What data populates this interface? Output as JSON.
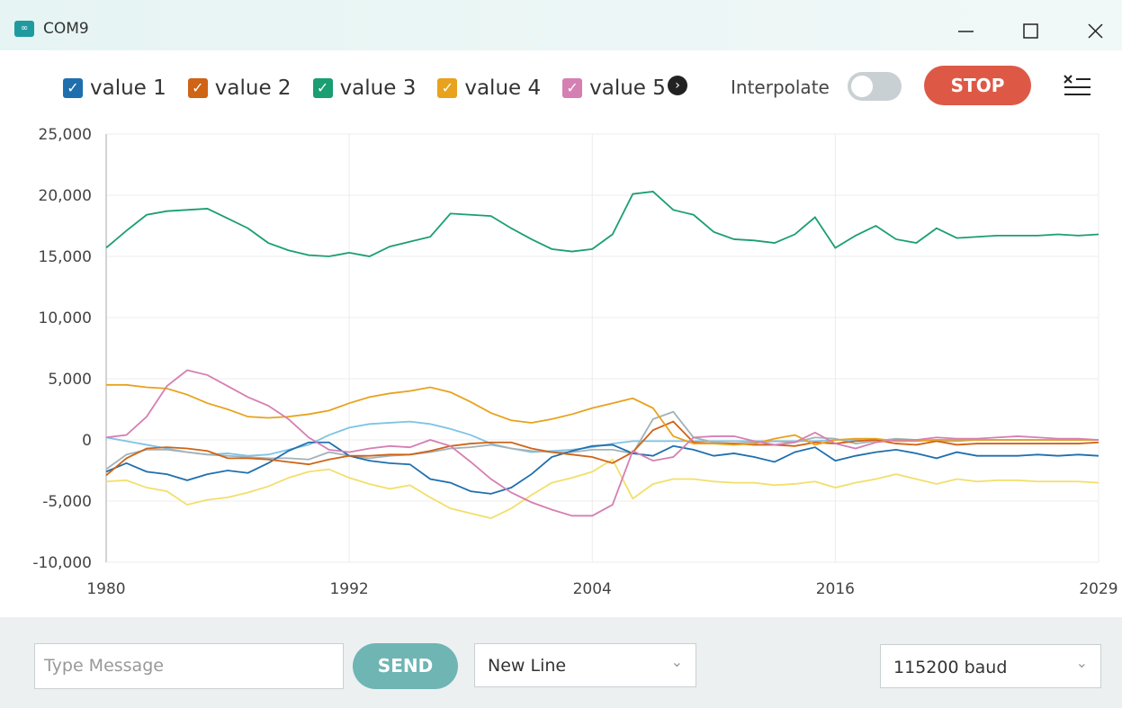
{
  "window": {
    "title": "COM9"
  },
  "controls": {
    "interpolate": "Interpolate",
    "stop": "STOP"
  },
  "footer": {
    "message_placeholder": "Type Message",
    "send": "SEND",
    "line_ending": "New Line",
    "baud": "115200 baud"
  },
  "chart_data": {
    "type": "line",
    "x": [
      1980,
      1981,
      1982,
      1983,
      1984,
      1985,
      1986,
      1987,
      1988,
      1989,
      1990,
      1991,
      1992,
      1993,
      1994,
      1995,
      1996,
      1997,
      1998,
      1999,
      2000,
      2001,
      2002,
      2003,
      2004,
      2005,
      2006,
      2007,
      2008,
      2009,
      2010,
      2011,
      2012,
      2013,
      2014,
      2015,
      2016,
      2017,
      2018,
      2019,
      2020,
      2021,
      2022,
      2023,
      2024,
      2025,
      2026,
      2027,
      2028,
      2029
    ],
    "xlim": [
      1980,
      2029
    ],
    "xticks": [
      1980,
      1992,
      2004,
      2016,
      2029
    ],
    "ylim": [
      -10000,
      25000
    ],
    "yticks": [
      {
        "value": -10000,
        "label": "-10,000"
      },
      {
        "value": -5000,
        "label": "-5,000"
      },
      0,
      {
        "value": 5000,
        "label": "5,000"
      },
      {
        "value": 10000,
        "label": "10,000"
      },
      {
        "value": 15000,
        "label": "15,000"
      },
      {
        "value": 20000,
        "label": "20,000"
      },
      {
        "value": 25000,
        "label": "25,000"
      }
    ],
    "grid": true,
    "series": [
      {
        "name": "value 1",
        "color": "#1f6fae",
        "values": [
          -2600,
          -1900,
          -2600,
          -2800,
          -3300,
          -2800,
          -2500,
          -2700,
          -1900,
          -900,
          -200,
          -200,
          -1300,
          -1700,
          -1900,
          -2000,
          -3200,
          -3500,
          -4200,
          -4400,
          -3900,
          -2800,
          -1400,
          -900,
          -500,
          -400,
          -1100,
          -1300,
          -500,
          -800,
          -1300,
          -1100,
          -1400,
          -1800,
          -1000,
          -600,
          -1700,
          -1300,
          -1000,
          -800,
          -1100,
          -1500,
          -1000,
          -1300,
          -1300,
          -1300,
          -1200,
          -1300,
          -1200,
          -1300
        ]
      },
      {
        "name": "value 2",
        "color": "#cf6316",
        "values": [
          -2900,
          -1500,
          -700,
          -600,
          -700,
          -900,
          -1500,
          -1500,
          -1600,
          -1800,
          -2000,
          -1600,
          -1300,
          -1300,
          -1200,
          -1200,
          -900,
          -500,
          -300,
          -200,
          -200,
          -700,
          -1000,
          -1200,
          -1400,
          -1900,
          -1000,
          800,
          1500,
          -200,
          -300,
          -300,
          -400,
          -400,
          -500,
          -200,
          -300,
          -100,
          0,
          -300,
          -400,
          -100,
          -400,
          -300,
          -300,
          -300,
          -300,
          -300,
          -300,
          -200
        ]
      },
      {
        "name": "value 3",
        "color": "#1a9e72",
        "values": [
          15700,
          17100,
          18400,
          18700,
          18800,
          18900,
          18100,
          17300,
          16100,
          15500,
          15100,
          15000,
          15300,
          15000,
          15800,
          16200,
          16600,
          18500,
          18400,
          18300,
          17300,
          16400,
          15600,
          15400,
          15600,
          16800,
          20100,
          20300,
          18800,
          18400,
          17000,
          16400,
          16300,
          16100,
          16800,
          18200,
          15700,
          16700,
          17500,
          16400,
          16100,
          17300,
          16500,
          16600,
          16700,
          16700,
          16700,
          16800,
          16700,
          16800
        ]
      },
      {
        "name": "value 4",
        "color": "#e8a21d",
        "values": [
          4500,
          4500,
          4300,
          4200,
          3700,
          3000,
          2500,
          1900,
          1800,
          1900,
          2100,
          2400,
          3000,
          3500,
          3800,
          4000,
          4300,
          3900,
          3100,
          2200,
          1600,
          1400,
          1700,
          2100,
          2600,
          3000,
          3400,
          2600,
          300,
          -300,
          -300,
          -400,
          -300,
          100,
          400,
          -400,
          0,
          100,
          100,
          -100,
          -100,
          0,
          0,
          0,
          0,
          0,
          0,
          0,
          0,
          0
        ]
      },
      {
        "name": "value 5",
        "color": "#d67fb2",
        "values": [
          200,
          400,
          1900,
          4400,
          5700,
          5300,
          4400,
          3500,
          2800,
          1700,
          200,
          -800,
          -1000,
          -700,
          -500,
          -600,
          0,
          -500,
          -1800,
          -3200,
          -4300,
          -5100,
          -5700,
          -6200,
          -6200,
          -5300,
          -900,
          -1700,
          -1400,
          200,
          300,
          300,
          -100,
          -400,
          -200,
          600,
          -300,
          -700,
          -200,
          0,
          0,
          200,
          100,
          100,
          200,
          300,
          200,
          100,
          100,
          0
        ]
      },
      {
        "color": "#7fc3e6",
        "values": [
          200,
          -100,
          -400,
          -700,
          -1000,
          -1200,
          -1100,
          -1300,
          -1200,
          -800,
          -400,
          400,
          1000,
          1300,
          1400,
          1500,
          1300,
          900,
          400,
          -300,
          -700,
          -1000,
          -900,
          -800,
          -600,
          -300,
          -100,
          -100,
          -100,
          -100,
          -100,
          -100,
          -100,
          -100,
          -100,
          -100,
          0,
          0,
          0,
          0,
          0,
          0,
          0,
          0,
          0,
          0,
          0,
          0,
          0,
          0
        ]
      },
      {
        "color": "#a3b2b8",
        "values": [
          -2400,
          -1200,
          -800,
          -800,
          -1000,
          -1200,
          -1300,
          -1400,
          -1500,
          -1500,
          -1600,
          -1000,
          -1300,
          -1500,
          -1300,
          -1200,
          -1000,
          -700,
          -600,
          -400,
          -700,
          -900,
          -1000,
          -1000,
          -800,
          -800,
          -1100,
          1700,
          2300,
          200,
          -200,
          -300,
          -200,
          -100,
          -200,
          200,
          100,
          -300,
          -100,
          100,
          0,
          -100,
          -100,
          0,
          0,
          0,
          0,
          0,
          0,
          0
        ]
      },
      {
        "color": "#f2df6b",
        "values": [
          -3400,
          -3300,
          -3900,
          -4200,
          -5300,
          -4900,
          -4700,
          -4300,
          -3800,
          -3100,
          -2600,
          -2400,
          -3100,
          -3600,
          -4000,
          -3700,
          -4700,
          -5600,
          -6000,
          -6400,
          -5600,
          -4500,
          -3500,
          -3100,
          -2600,
          -1600,
          -4800,
          -3600,
          -3200,
          -3200,
          -3400,
          -3500,
          -3500,
          -3700,
          -3600,
          -3400,
          -3900,
          -3500,
          -3200,
          -2800,
          -3200,
          -3600,
          -3200,
          -3400,
          -3300,
          -3300,
          -3400,
          -3400,
          -3400,
          -3500
        ]
      }
    ]
  }
}
